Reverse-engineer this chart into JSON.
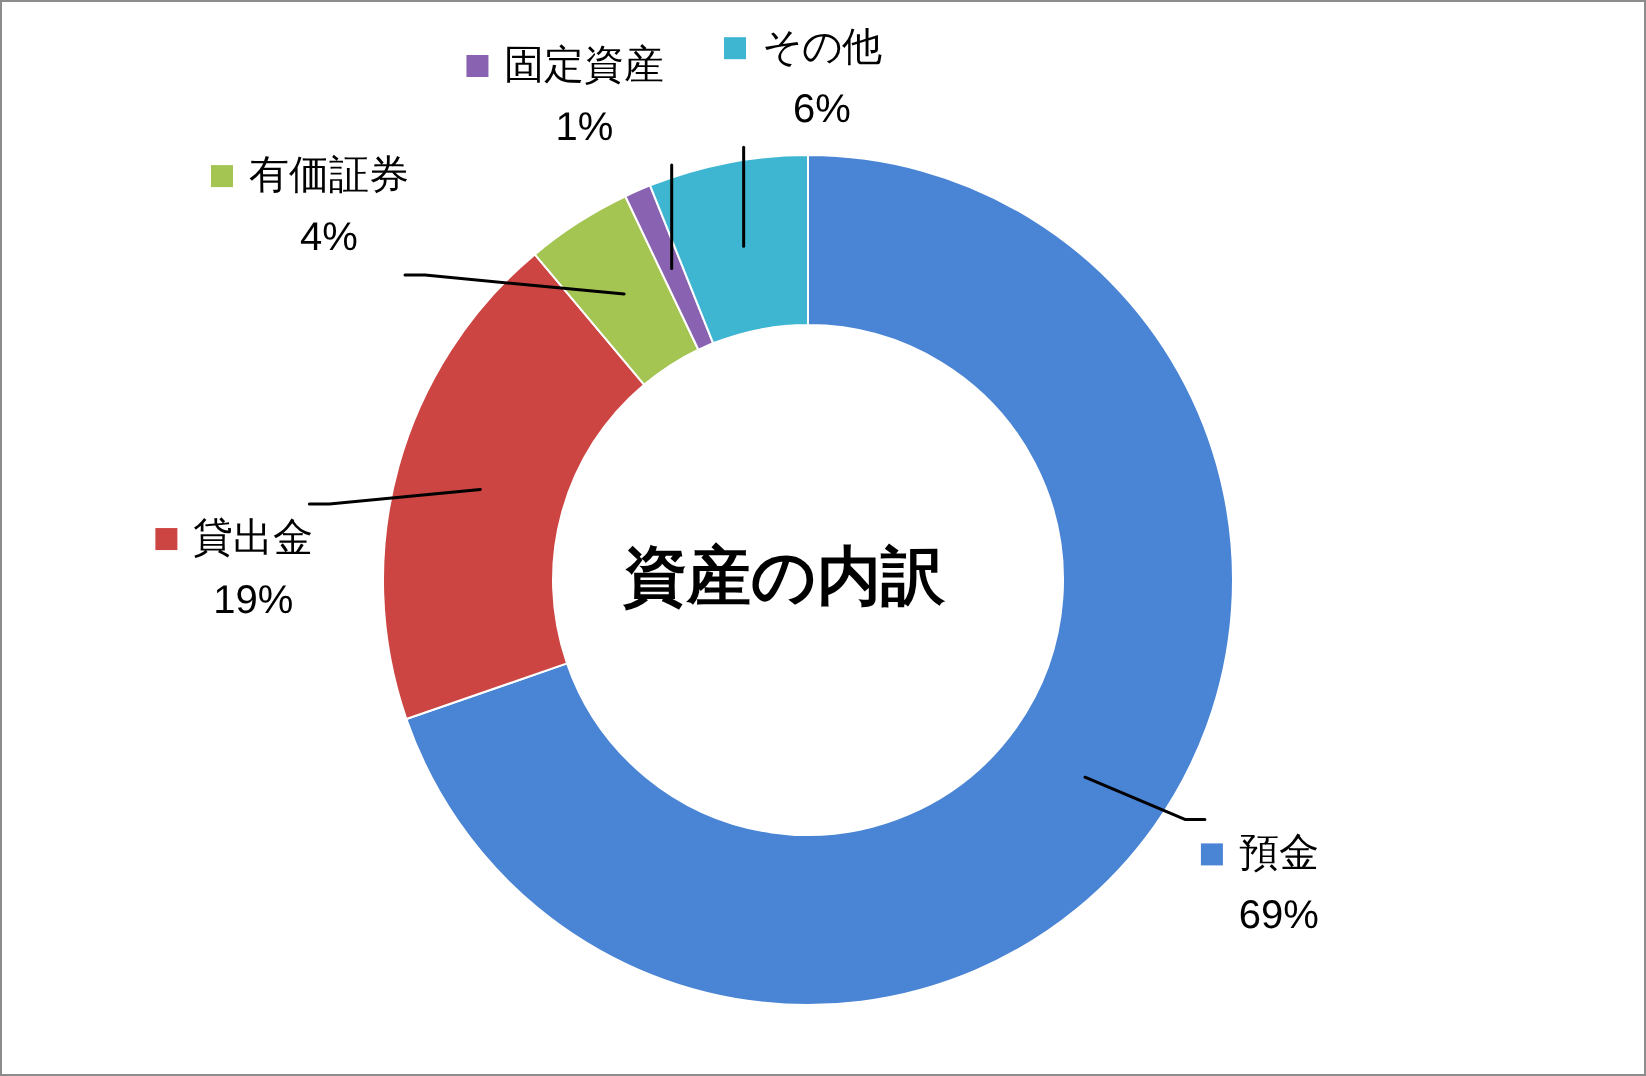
{
  "chart_data": {
    "type": "donut",
    "title": "資産の内訳",
    "categories": [
      "預金",
      "貸出金",
      "有価証券",
      "固定資産",
      "その他"
    ],
    "values": [
      69,
      19,
      4,
      1,
      6
    ],
    "colors": [
      "#4a84d4",
      "#cc4542",
      "#a4c552",
      "#8a62b2",
      "#3eb6d2"
    ],
    "value_labels": [
      "69%",
      "19%",
      "4%",
      "1%",
      "6%"
    ],
    "legend": "left"
  }
}
